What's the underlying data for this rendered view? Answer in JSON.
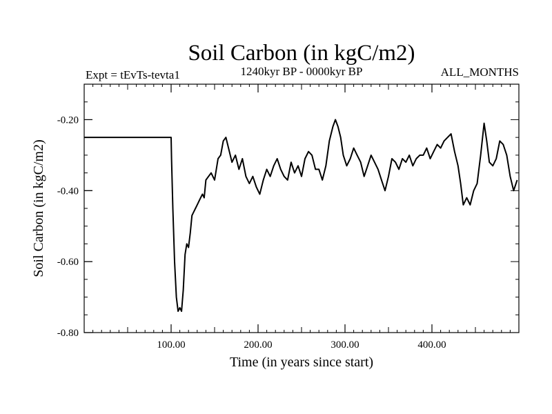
{
  "chart_data": {
    "type": "line",
    "title": "Soil Carbon (in kgC/m2)",
    "subtitle": "1240kyr BP - 0000kyr BP",
    "left_note": "Expt = tEvTs-tevta1",
    "right_note": "ALL_MONTHS",
    "xlabel": "Time (in years since start)",
    "ylabel": "Soil Carbon (in kgC/m2)",
    "xlim": [
      0,
      500
    ],
    "ylim": [
      -0.8,
      -0.1
    ],
    "grid": false,
    "x_ticks": [
      {
        "value": 100,
        "label": "100.00"
      },
      {
        "value": 200,
        "label": "200.00"
      },
      {
        "value": 300,
        "label": "300.00"
      },
      {
        "value": 400,
        "label": "400.00"
      }
    ],
    "y_ticks": [
      {
        "value": -0.2,
        "label": "-0.20"
      },
      {
        "value": -0.4,
        "label": "-0.40"
      },
      {
        "value": -0.6,
        "label": "-0.60"
      },
      {
        "value": -0.8,
        "label": "-0.80"
      }
    ],
    "series": [
      {
        "name": "Soil Carbon",
        "x": [
          0,
          100,
          100.5,
          102,
          104,
          106,
          108,
          110,
          112,
          114,
          116,
          118,
          120,
          122,
          124,
          126,
          128,
          130,
          132,
          134,
          136,
          138,
          140,
          143,
          146,
          150,
          154,
          157,
          160,
          163,
          166,
          170,
          174,
          178,
          182,
          186,
          190,
          194,
          198,
          202,
          206,
          210,
          214,
          218,
          222,
          226,
          230,
          234,
          238,
          242,
          246,
          250,
          254,
          258,
          262,
          266,
          270,
          274,
          278,
          282,
          286,
          289,
          292,
          295,
          298,
          302,
          306,
          310,
          314,
          318,
          322,
          326,
          330,
          334,
          338,
          342,
          346,
          350,
          354,
          358,
          362,
          366,
          370,
          374,
          378,
          382,
          386,
          390,
          394,
          398,
          402,
          406,
          410,
          414,
          418,
          422,
          426,
          430,
          433,
          436,
          440,
          444,
          448,
          452,
          456,
          460,
          463,
          466,
          470,
          474,
          478,
          482,
          486,
          490,
          494,
          498
        ],
        "values": [
          -0.25,
          -0.25,
          -0.31,
          -0.45,
          -0.6,
          -0.7,
          -0.74,
          -0.73,
          -0.74,
          -0.68,
          -0.58,
          -0.55,
          -0.56,
          -0.52,
          -0.47,
          -0.46,
          -0.45,
          -0.44,
          -0.43,
          -0.42,
          -0.41,
          -0.42,
          -0.37,
          -0.36,
          -0.35,
          -0.37,
          -0.31,
          -0.3,
          -0.26,
          -0.25,
          -0.28,
          -0.32,
          -0.3,
          -0.34,
          -0.31,
          -0.36,
          -0.38,
          -0.36,
          -0.39,
          -0.41,
          -0.37,
          -0.34,
          -0.36,
          -0.33,
          -0.31,
          -0.34,
          -0.36,
          -0.37,
          -0.32,
          -0.35,
          -0.33,
          -0.36,
          -0.31,
          -0.29,
          -0.3,
          -0.34,
          -0.34,
          -0.37,
          -0.33,
          -0.26,
          -0.22,
          -0.2,
          -0.22,
          -0.25,
          -0.3,
          -0.33,
          -0.31,
          -0.28,
          -0.3,
          -0.32,
          -0.36,
          -0.33,
          -0.3,
          -0.32,
          -0.34,
          -0.37,
          -0.4,
          -0.36,
          -0.31,
          -0.32,
          -0.34,
          -0.31,
          -0.32,
          -0.3,
          -0.33,
          -0.31,
          -0.3,
          -0.3,
          -0.28,
          -0.31,
          -0.29,
          -0.27,
          -0.28,
          -0.26,
          -0.25,
          -0.24,
          -0.29,
          -0.33,
          -0.38,
          -0.44,
          -0.42,
          -0.44,
          -0.4,
          -0.38,
          -0.3,
          -0.21,
          -0.26,
          -0.32,
          -0.33,
          -0.31,
          -0.26,
          -0.27,
          -0.3,
          -0.36,
          -0.4,
          -0.37
        ]
      }
    ]
  }
}
